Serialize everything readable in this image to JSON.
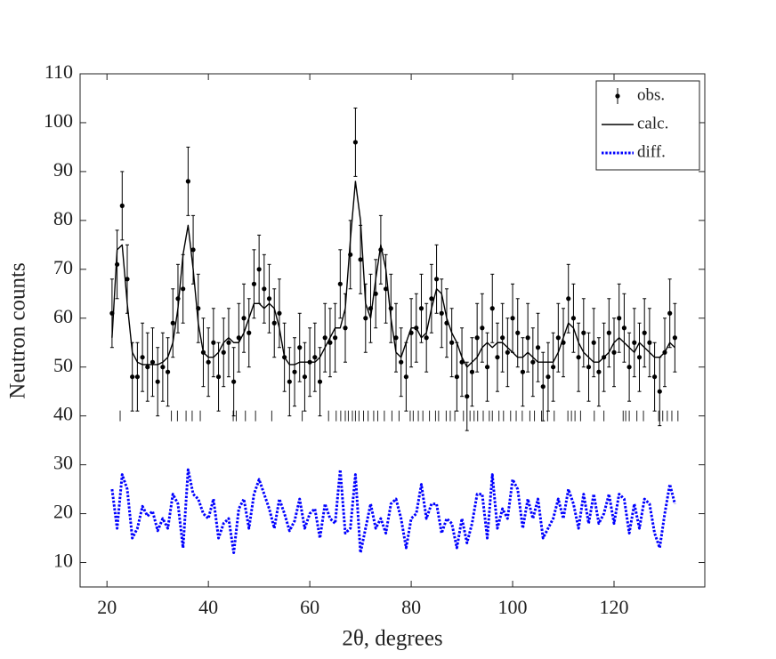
{
  "chart_data": {
    "type": "diffraction",
    "xlabel": "2θ, degrees",
    "ylabel": "Neutron counts",
    "xlim": [
      14.7,
      137.9
    ],
    "ylim": [
      5,
      110
    ],
    "xticks": [
      20,
      40,
      60,
      80,
      100,
      120
    ],
    "yticks": [
      10,
      20,
      30,
      40,
      50,
      60,
      70,
      80,
      90,
      100,
      110
    ],
    "legend": "upper right",
    "x": [
      21,
      22,
      23,
      24,
      25,
      26,
      27,
      28,
      29,
      30,
      31,
      32,
      33,
      34,
      35,
      36,
      37,
      38,
      39,
      40,
      41,
      42,
      43,
      44,
      45,
      46,
      47,
      48,
      49,
      50,
      51,
      52,
      53,
      54,
      55,
      56,
      57,
      58,
      59,
      60,
      61,
      62,
      63,
      64,
      65,
      66,
      67,
      68,
      69,
      70,
      71,
      72,
      73,
      74,
      75,
      76,
      77,
      78,
      79,
      80,
      81,
      82,
      83,
      84,
      85,
      86,
      87,
      88,
      89,
      90,
      91,
      92,
      93,
      94,
      95,
      96,
      97,
      98,
      99,
      100,
      101,
      102,
      103,
      104,
      105,
      106,
      107,
      108,
      109,
      110,
      111,
      112,
      113,
      114,
      115,
      116,
      117,
      118,
      119,
      120,
      121,
      122,
      123,
      124,
      125,
      126,
      127,
      128,
      129,
      130,
      131,
      132
    ],
    "series": [
      {
        "name": "obs.",
        "color": "#000000",
        "error": 7,
        "values": [
          61,
          71,
          83,
          68,
          48,
          48,
          52,
          50,
          51,
          47,
          50,
          49,
          59,
          64,
          66,
          88,
          74,
          62,
          53,
          51,
          55,
          48,
          53,
          55,
          47,
          56,
          60,
          57,
          67,
          70,
          66,
          64,
          59,
          61,
          52,
          47,
          49,
          54,
          48,
          51,
          52,
          47,
          56,
          55,
          56,
          67,
          58,
          73,
          96,
          72,
          60,
          62,
          65,
          74,
          66,
          62,
          56,
          51,
          48,
          57,
          58,
          62,
          56,
          64,
          68,
          61,
          59,
          55,
          48,
          51,
          44,
          49,
          56,
          58,
          50,
          62,
          52,
          56,
          53,
          60,
          57,
          49,
          56,
          51,
          54,
          46,
          48,
          50,
          56,
          55,
          64,
          60,
          52,
          57,
          50,
          55,
          49,
          52,
          57,
          53,
          60,
          58,
          50,
          55,
          52,
          57,
          55,
          48,
          45,
          53,
          61,
          56
        ]
      },
      {
        "name": "calc.",
        "color": "#000000",
        "values": [
          56,
          74,
          75,
          63,
          53,
          51,
          50.5,
          50.5,
          50.5,
          50.5,
          51,
          52,
          55,
          62,
          73,
          79,
          70,
          59,
          53,
          52,
          52,
          53,
          55,
          56,
          55,
          55,
          57,
          60,
          63,
          63,
          62,
          63,
          62,
          58,
          52,
          50.5,
          50.5,
          51,
          51,
          51,
          51,
          52,
          54,
          56,
          58,
          58,
          62,
          76,
          88,
          80,
          63,
          60,
          68,
          75,
          70,
          60,
          53,
          52,
          55,
          58,
          58,
          56,
          57,
          62,
          66,
          65,
          60,
          57,
          55,
          52,
          50,
          51,
          52,
          54,
          55,
          54,
          55,
          55,
          54,
          53,
          52,
          52,
          53,
          52,
          51,
          51,
          51,
          51,
          53,
          56,
          59,
          58,
          55,
          53,
          52,
          51,
          51,
          52,
          53,
          55,
          56,
          55,
          54,
          53,
          55,
          54,
          53,
          52,
          52,
          53,
          55,
          54
        ]
      },
      {
        "name": "diff.",
        "color": "#0000ff",
        "values": [
          25,
          17,
          28,
          25,
          15,
          17,
          21.5,
          19.5,
          20.5,
          16.5,
          19,
          17,
          24,
          22,
          13,
          29,
          24,
          23,
          20,
          19,
          23,
          15,
          18,
          19,
          12,
          21,
          23,
          17,
          24,
          27,
          24,
          21,
          17,
          23,
          20,
          16.5,
          18.5,
          23,
          17,
          20,
          21,
          15,
          22,
          19,
          18,
          29,
          16,
          17,
          28,
          12,
          17,
          22,
          17,
          19,
          16,
          22,
          23,
          19,
          13,
          19,
          20,
          26,
          19,
          22,
          22,
          16,
          19,
          18,
          13,
          19,
          14,
          18,
          24,
          24,
          15,
          28,
          17,
          21,
          19,
          27,
          25,
          17,
          23,
          19,
          23,
          15,
          17,
          19,
          23,
          19,
          25,
          22,
          17,
          24,
          18,
          24,
          18,
          20,
          24,
          18,
          24,
          23,
          16,
          22,
          17,
          23,
          22,
          16,
          13,
          20,
          26,
          22
        ]
      }
    ],
    "reflections": {
      "y": 40,
      "x": [
        22.6,
        32.7,
        33.9,
        35.6,
        36.8,
        38.4,
        44.9,
        45.5,
        47.3,
        49.3,
        52.5,
        58.5,
        63.7,
        65.2,
        66.1,
        67.0,
        67.6,
        68.4,
        69.0,
        69.7,
        70.6,
        71.5,
        72.6,
        73.4,
        74.7,
        76.2,
        77.6,
        79.8,
        80.4,
        81.4,
        82.3,
        83.6,
        84.8,
        85.4,
        86.9,
        87.7,
        88.6,
        90.3,
        91.6,
        92.4,
        93.1,
        94.2,
        95.4,
        96.0,
        97.3,
        98.2,
        99.6,
        100.7,
        101.9,
        103.4,
        104.3,
        105.7,
        106.9,
        108.2,
        110.9,
        111.6,
        112.3,
        113.4,
        116.1,
        118.0,
        121.8,
        122.3,
        123.0,
        124.5,
        125.8,
        128.8,
        129.6,
        130.5,
        131.4,
        132.6
      ]
    }
  }
}
